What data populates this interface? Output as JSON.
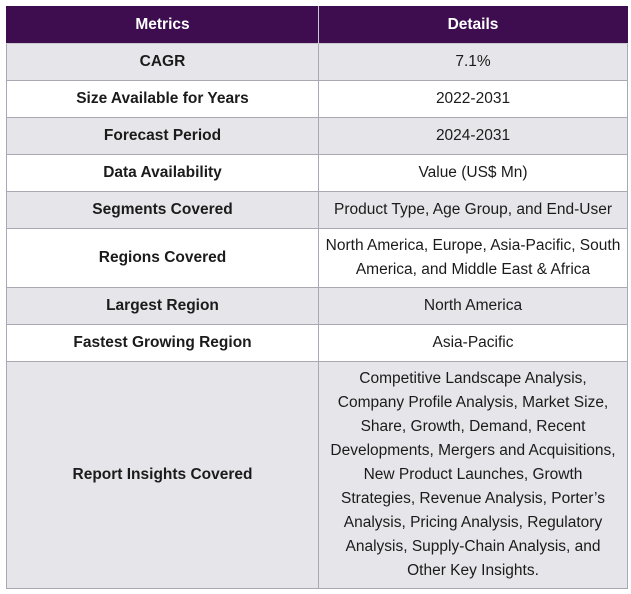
{
  "table": {
    "headers": [
      "Metrics",
      "Details"
    ],
    "rows": [
      {
        "metric": "CAGR",
        "details": "7.1%"
      },
      {
        "metric": "Size Available for Years",
        "details": "2022-2031"
      },
      {
        "metric": "Forecast Period",
        "details": "2024-2031"
      },
      {
        "metric": "Data Availability",
        "details": "Value (US$ Mn)"
      },
      {
        "metric": "Segments Covered",
        "details": "Product Type, Age Group, and End-User"
      },
      {
        "metric": "Regions Covered",
        "details": "North America, Europe, Asia-Pacific, South America, and Middle East & Africa"
      },
      {
        "metric": "Largest Region",
        "details": "North America"
      },
      {
        "metric": "Fastest Growing Region",
        "details": "Asia-Pacific"
      },
      {
        "metric": "Report Insights Covered",
        "details": "Competitive Landscape Analysis, Company Profile Analysis, Market Size, Share, Growth, Demand, Recent Developments, Mergers and Acquisitions, New Product Launches, Growth Strategies, Revenue Analysis, Porter’s Analysis, Pricing Analysis, Regulatory Analysis, Supply-Chain Analysis, and Other Key Insights."
      }
    ]
  },
  "colors": {
    "header_bg": "#3d0d4f",
    "header_text": "#ffffff",
    "row_alt_bg": "#e6e6ea",
    "row_bg": "#ffffff"
  }
}
